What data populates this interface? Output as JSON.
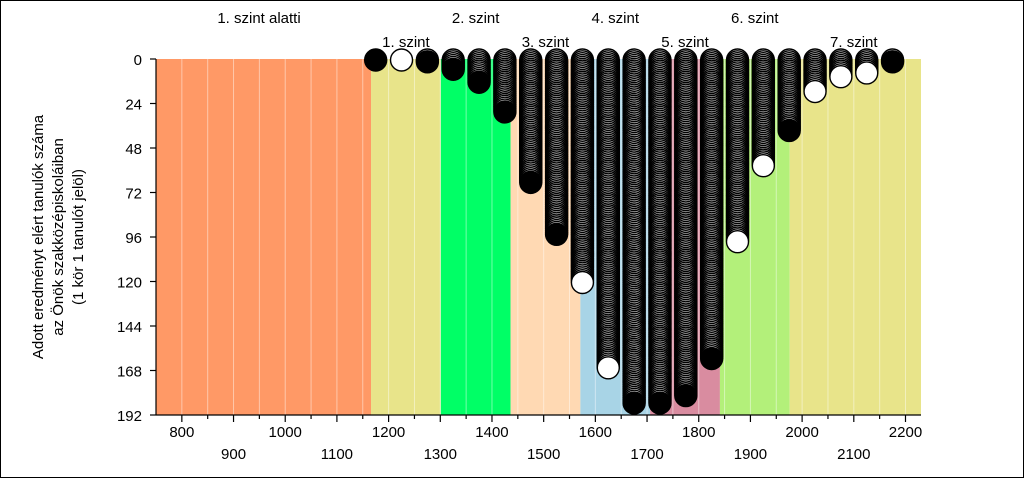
{
  "chart_data": {
    "type": "scatter",
    "title": "",
    "ylabel_lines": [
      "Adott eredményt elért tanulók száma",
      "az Önök szakközépiskoláiban",
      "(1 kör 1 tanulót jelöl)"
    ],
    "xlim": [
      750,
      2230
    ],
    "ylim": [
      0,
      192
    ],
    "y_inverted": true,
    "x_ticks_top_row": [
      800,
      1000,
      1200,
      1400,
      1600,
      1800,
      2000,
      2200
    ],
    "x_ticks_bottom_row": [
      900,
      1100,
      1300,
      1500,
      1700,
      1900,
      2100
    ],
    "y_ticks": [
      0,
      24,
      48,
      72,
      96,
      120,
      144,
      168,
      192
    ],
    "grid_step_x": 50,
    "levels": [
      {
        "label": "1. szint alatti",
        "from": 750,
        "to": 1166,
        "color": "#FF9966",
        "row": "top"
      },
      {
        "label": "1. szint",
        "from": 1166,
        "to": 1301,
        "color": "#E8E48A",
        "row": "bottom"
      },
      {
        "label": "2. szint",
        "from": 1301,
        "to": 1436,
        "color": "#00FF66",
        "row": "top"
      },
      {
        "label": "3. szint",
        "from": 1436,
        "to": 1571,
        "color": "#FFD9B3",
        "row": "bottom"
      },
      {
        "label": "4. szint",
        "from": 1571,
        "to": 1706,
        "color": "#A8D4E6",
        "row": "top"
      },
      {
        "label": "5. szint",
        "from": 1706,
        "to": 1841,
        "color": "#D98CA0",
        "row": "bottom"
      },
      {
        "label": "6. szint",
        "from": 1841,
        "to": 1976,
        "color": "#B3F07A",
        "row": "top"
      },
      {
        "label": "7. szint",
        "from": 1976,
        "to": 2230,
        "color": "#E8E48A",
        "row": "bottom"
      }
    ],
    "series": [
      {
        "x": 1175,
        "count": 1,
        "last_filled": true
      },
      {
        "x": 1225,
        "count": 1,
        "last_filled": false
      },
      {
        "x": 1275,
        "count": 2,
        "last_filled": true
      },
      {
        "x": 1325,
        "count": 6,
        "last_filled": true
      },
      {
        "x": 1375,
        "count": 13,
        "last_filled": true
      },
      {
        "x": 1425,
        "count": 29,
        "last_filled": true
      },
      {
        "x": 1475,
        "count": 67,
        "last_filled": true
      },
      {
        "x": 1525,
        "count": 95,
        "last_filled": true
      },
      {
        "x": 1575,
        "count": 121,
        "last_filled": false
      },
      {
        "x": 1625,
        "count": 167,
        "last_filled": false
      },
      {
        "x": 1675,
        "count": 186,
        "last_filled": true
      },
      {
        "x": 1725,
        "count": 186,
        "last_filled": true
      },
      {
        "x": 1775,
        "count": 182,
        "last_filled": true
      },
      {
        "x": 1825,
        "count": 162,
        "last_filled": true
      },
      {
        "x": 1875,
        "count": 99,
        "last_filled": false
      },
      {
        "x": 1925,
        "count": 58,
        "last_filled": false
      },
      {
        "x": 1975,
        "count": 39,
        "last_filled": true
      },
      {
        "x": 2025,
        "count": 18,
        "last_filled": false
      },
      {
        "x": 2075,
        "count": 10,
        "last_filled": false
      },
      {
        "x": 2125,
        "count": 8,
        "last_filled": false
      },
      {
        "x": 2175,
        "count": 2,
        "last_filled": true
      }
    ]
  }
}
